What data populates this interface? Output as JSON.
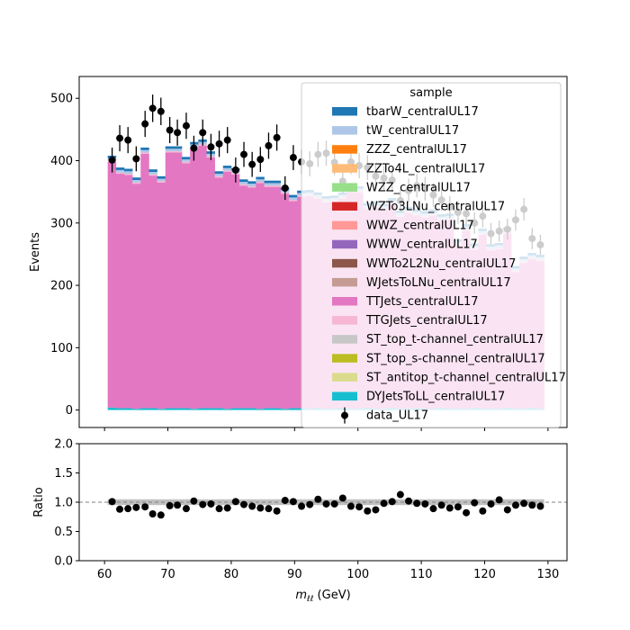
{
  "chart_data": [
    {
      "type": "bar",
      "subtype": "stacked-histogram-with-data-points",
      "ylabel": "Events",
      "xlim": [
        56,
        133
      ],
      "ylim": [
        -28,
        535
      ],
      "yticks": [
        0,
        100,
        200,
        300,
        400,
        500
      ],
      "xticks": [
        60,
        70,
        80,
        90,
        100,
        110,
        120,
        130
      ],
      "grid": false,
      "legend": {
        "title": "sample",
        "placement": "top-right"
      },
      "bin_edges": [
        60.5,
        61.8,
        63.1,
        64.4,
        65.7,
        67.0,
        68.3,
        69.6,
        70.9,
        72.2,
        73.5,
        74.8,
        76.1,
        77.4,
        78.7,
        80.0,
        81.3,
        82.6,
        83.9,
        85.2,
        86.5,
        87.8,
        89.1,
        90.4,
        91.7,
        93.0,
        94.3,
        95.6,
        96.9,
        98.2,
        99.5,
        100.8,
        102.1,
        103.4,
        104.7,
        106.0,
        107.3,
        108.6,
        109.9,
        111.2,
        112.5,
        113.8,
        115.1,
        116.4,
        117.7,
        119.0,
        120.3,
        121.6,
        122.9,
        124.2,
        125.5,
        126.8,
        128.1,
        129.4
      ],
      "series": [
        {
          "name": "DYJetsToLL_centralUL17",
          "color": "#17becf",
          "values": [
            4,
            3,
            3,
            2,
            3,
            3,
            2,
            3,
            3,
            3,
            2,
            3,
            3,
            3,
            2,
            3,
            3,
            3,
            2,
            3,
            3,
            2,
            3,
            3,
            2,
            3,
            2,
            2,
            3,
            2,
            2,
            3,
            2,
            2,
            3,
            2,
            2,
            3,
            2,
            2,
            3,
            2,
            2,
            2,
            3,
            2,
            2,
            2,
            3,
            2,
            2,
            3,
            2
          ]
        },
        {
          "name": "TTJets_centralUL17",
          "color": "#e377c2",
          "values": [
            394,
            376,
            374,
            361,
            408,
            373,
            363,
            410,
            410,
            393,
            418,
            421,
            402,
            370,
            380,
            375,
            357,
            354,
            362,
            355,
            355,
            345,
            332,
            339,
            341,
            336,
            331,
            332,
            336,
            349,
            347,
            319,
            323,
            319,
            327,
            308,
            314,
            309,
            307,
            310,
            301,
            303,
            262,
            286,
            254,
            279,
            254,
            256,
            280,
            219,
            234,
            239,
            237
          ]
        },
        {
          "name": "TTGJets_centralUL17",
          "color": "#f7b6d2",
          "values": [
            2,
            2,
            2,
            2,
            2,
            2,
            2,
            2,
            2,
            2,
            2,
            2,
            2,
            2,
            2,
            2,
            2,
            2,
            2,
            2,
            2,
            2,
            2,
            2,
            2,
            2,
            2,
            2,
            2,
            2,
            2,
            2,
            2,
            2,
            2,
            2,
            2,
            2,
            2,
            2,
            2,
            2,
            2,
            2,
            2,
            2,
            2,
            2,
            2,
            2,
            2,
            2,
            2
          ]
        },
        {
          "name": "tW_centralUL17",
          "color": "#aec7e8",
          "values": [
            4,
            4,
            4,
            4,
            4,
            4,
            4,
            4,
            4,
            4,
            4,
            4,
            4,
            4,
            4,
            4,
            4,
            4,
            4,
            4,
            4,
            4,
            4,
            4,
            4,
            4,
            4,
            4,
            4,
            4,
            4,
            4,
            4,
            4,
            4,
            4,
            4,
            4,
            4,
            4,
            4,
            4,
            4,
            4,
            4,
            4,
            4,
            4,
            4,
            4,
            4,
            4,
            4
          ]
        },
        {
          "name": "tbarW_centralUL17",
          "color": "#1f77b4",
          "values": [
            4,
            4,
            4,
            4,
            4,
            4,
            4,
            4,
            4,
            4,
            4,
            4,
            4,
            4,
            4,
            4,
            4,
            4,
            4,
            4,
            4,
            4,
            4,
            4,
            4,
            4,
            4,
            4,
            4,
            4,
            4,
            4,
            4,
            4,
            4,
            4,
            4,
            4,
            4,
            4,
            4,
            4,
            4,
            4,
            4,
            4,
            4,
            4,
            4,
            4,
            4,
            4,
            4
          ]
        }
      ],
      "legend_entries": [
        {
          "name": "tbarW_centralUL17",
          "color": "#1f77b4"
        },
        {
          "name": "tW_centralUL17",
          "color": "#aec7e8"
        },
        {
          "name": "ZZZ_centralUL17",
          "color": "#ff7f0e"
        },
        {
          "name": "ZZTo4L_centralUL17",
          "color": "#ffbb78"
        },
        {
          "name": "WZZ_centralUL17",
          "color": "#98df8a"
        },
        {
          "name": "WZTo3LNu_centralUL17",
          "color": "#d62728"
        },
        {
          "name": "WWZ_centralUL17",
          "color": "#ff9896"
        },
        {
          "name": "WWW_centralUL17",
          "color": "#9467bd"
        },
        {
          "name": "WWTo2L2Nu_centralUL17",
          "color": "#8c564b"
        },
        {
          "name": "WJetsToLNu_centralUL17",
          "color": "#c49c94"
        },
        {
          "name": "TTJets_centralUL17",
          "color": "#e377c2"
        },
        {
          "name": "TTGJets_centralUL17",
          "color": "#f7b6d2"
        },
        {
          "name": "ST_top_t-channel_centralUL17",
          "color": "#c7c7c7"
        },
        {
          "name": "ST_top_s-channel_centralUL17",
          "color": "#bcbd22"
        },
        {
          "name": "ST_antitop_t-channel_centralUL17",
          "color": "#dbdb8d"
        },
        {
          "name": "DYJetsToLL_centralUL17",
          "color": "#17becf"
        }
      ],
      "data": {
        "name": "data_UL17",
        "x": [
          61.2,
          62.4,
          63.7,
          65.0,
          66.4,
          67.6,
          68.9,
          70.3,
          71.5,
          72.9,
          74.1,
          75.5,
          76.8,
          78.1,
          79.4,
          80.7,
          82.0,
          83.3,
          84.6,
          85.9,
          87.2,
          88.5,
          89.8,
          91.1,
          92.4,
          93.7,
          95.0,
          96.3,
          97.6,
          98.9,
          100.2,
          101.5,
          102.8,
          104.1,
          105.4,
          106.7,
          108.0,
          109.3,
          110.6,
          111.9,
          113.2,
          114.5,
          115.8,
          117.1,
          118.4,
          119.7,
          121.0,
          122.3,
          123.6,
          124.9,
          126.2,
          127.5,
          128.8
        ],
        "y": [
          401,
          436,
          433,
          403,
          459,
          484,
          479,
          449,
          445,
          456,
          420,
          445,
          422,
          427,
          433,
          385,
          410,
          394,
          402,
          424,
          437,
          356,
          405,
          398,
          395,
          410,
          412,
          397,
          367,
          398,
          392,
          389,
          375,
          372,
          369,
          336,
          352,
          360,
          355,
          345,
          337,
          325,
          317,
          315,
          300,
          311,
          283,
          287,
          290,
          305,
          322,
          275,
          265
        ],
        "yerr": [
          20,
          21,
          21,
          20,
          21,
          22,
          22,
          21,
          21,
          21,
          20,
          21,
          21,
          21,
          21,
          20,
          20,
          20,
          20,
          21,
          21,
          19,
          20,
          20,
          20,
          20,
          20,
          20,
          19,
          20,
          20,
          20,
          19,
          19,
          19,
          18,
          19,
          19,
          19,
          19,
          18,
          18,
          18,
          18,
          17,
          18,
          17,
          17,
          17,
          17,
          18,
          17,
          16
        ],
        "color": "#000000"
      }
    },
    {
      "type": "scatter",
      "subtype": "ratio",
      "xlabel": "m_{ℓℓ} (GeV)",
      "xlabel_main": "m",
      "xlabel_sub": "ℓℓ",
      "xlabel_unit": " (GeV)",
      "ylabel": "Ratio",
      "xlim": [
        56,
        133
      ],
      "ylim": [
        0.0,
        2.0
      ],
      "yticks": [
        0.0,
        0.5,
        1.0,
        1.5,
        2.0
      ],
      "ytick_labels": [
        "0.0",
        "0.5",
        "1.0",
        "1.5",
        "2.0"
      ],
      "xticks": [
        60,
        70,
        80,
        90,
        100,
        110,
        120,
        130
      ],
      "reference_line": 1.0,
      "uncertainty_band": {
        "low": 0.95,
        "high": 1.05,
        "color": "#b0b0b0"
      },
      "points": {
        "x": [
          61.2,
          62.4,
          63.7,
          65.0,
          66.4,
          67.6,
          68.9,
          70.3,
          71.5,
          72.9,
          74.1,
          75.5,
          76.8,
          78.1,
          79.4,
          80.7,
          82.0,
          83.3,
          84.6,
          85.9,
          87.2,
          88.5,
          89.8,
          91.1,
          92.4,
          93.7,
          95.0,
          96.3,
          97.6,
          98.9,
          100.2,
          101.5,
          102.8,
          104.1,
          105.4,
          106.7,
          108.0,
          109.3,
          110.6,
          111.9,
          113.2,
          114.5,
          115.8,
          117.1,
          118.4,
          119.7,
          121.0,
          122.3,
          123.6,
          124.9,
          126.2,
          127.5,
          128.8
        ],
        "y": [
          1.01,
          0.88,
          0.89,
          0.91,
          0.92,
          0.8,
          0.78,
          0.94,
          0.95,
          0.89,
          1.02,
          0.96,
          0.97,
          0.89,
          0.9,
          1.01,
          0.96,
          0.93,
          0.9,
          0.89,
          0.85,
          1.03,
          1.01,
          0.93,
          0.96,
          1.05,
          0.97,
          0.97,
          1.07,
          0.93,
          0.92,
          0.85,
          0.87,
          0.98,
          1.01,
          1.13,
          1.02,
          0.98,
          0.97,
          0.89,
          0.95,
          0.9,
          0.92,
          0.82,
          0.99,
          0.85,
          0.97,
          1.04,
          0.87,
          0.95,
          0.98,
          0.95,
          0.93
        ]
      }
    }
  ]
}
